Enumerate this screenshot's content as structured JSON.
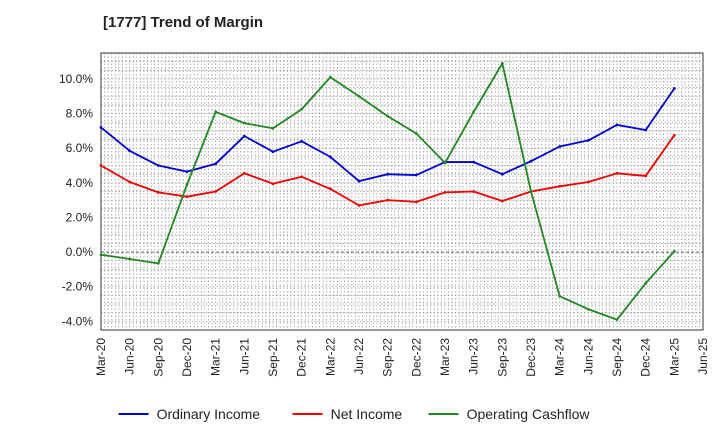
{
  "chart_data": {
    "type": "line",
    "title": "[1777]  Trend of Margin",
    "categories": [
      "Mar-20",
      "Jun-20",
      "Sep-20",
      "Dec-20",
      "Mar-21",
      "Jun-21",
      "Sep-21",
      "Dec-21",
      "Mar-22",
      "Jun-22",
      "Sep-22",
      "Dec-22",
      "Mar-23",
      "Jun-23",
      "Sep-23",
      "Dec-23",
      "Mar-24",
      "Jun-24",
      "Sep-24",
      "Dec-24",
      "Mar-25",
      "Jun-25"
    ],
    "ylim": [
      -4.5,
      11.5
    ],
    "yticks": [
      -4.0,
      -2.0,
      0.0,
      2.0,
      4.0,
      6.0,
      8.0,
      10.0
    ],
    "ytick_labels": [
      "-4.0%",
      "-2.0%",
      "0.0%",
      "2.0%",
      "4.0%",
      "6.0%",
      "8.0%",
      "10.0%"
    ],
    "grid": true,
    "legend_position": "bottom",
    "series": [
      {
        "name": "Ordinary Income",
        "color": "#0000cc",
        "values": [
          7.2,
          5.85,
          5.0,
          4.65,
          5.1,
          6.7,
          5.8,
          6.4,
          5.5,
          4.1,
          4.5,
          4.45,
          5.2,
          5.2,
          4.5,
          5.25,
          6.1,
          6.45,
          7.35,
          7.05,
          9.45,
          null
        ]
      },
      {
        "name": "Net Income",
        "color": "#ee0000",
        "values": [
          5.0,
          4.05,
          3.45,
          3.2,
          3.5,
          4.55,
          3.95,
          4.35,
          3.65,
          2.7,
          3.0,
          2.9,
          3.45,
          3.5,
          2.95,
          3.5,
          3.8,
          4.05,
          4.55,
          4.4,
          6.75,
          null
        ]
      },
      {
        "name": "Operating Cashflow",
        "color": "#228822",
        "values": [
          -0.15,
          -0.4,
          -0.65,
          3.9,
          8.1,
          7.45,
          7.15,
          8.25,
          10.1,
          9.0,
          7.85,
          6.85,
          5.15,
          8.1,
          10.9,
          3.5,
          -2.55,
          -3.3,
          -3.9,
          -1.8,
          0.05,
          null
        ]
      }
    ]
  }
}
